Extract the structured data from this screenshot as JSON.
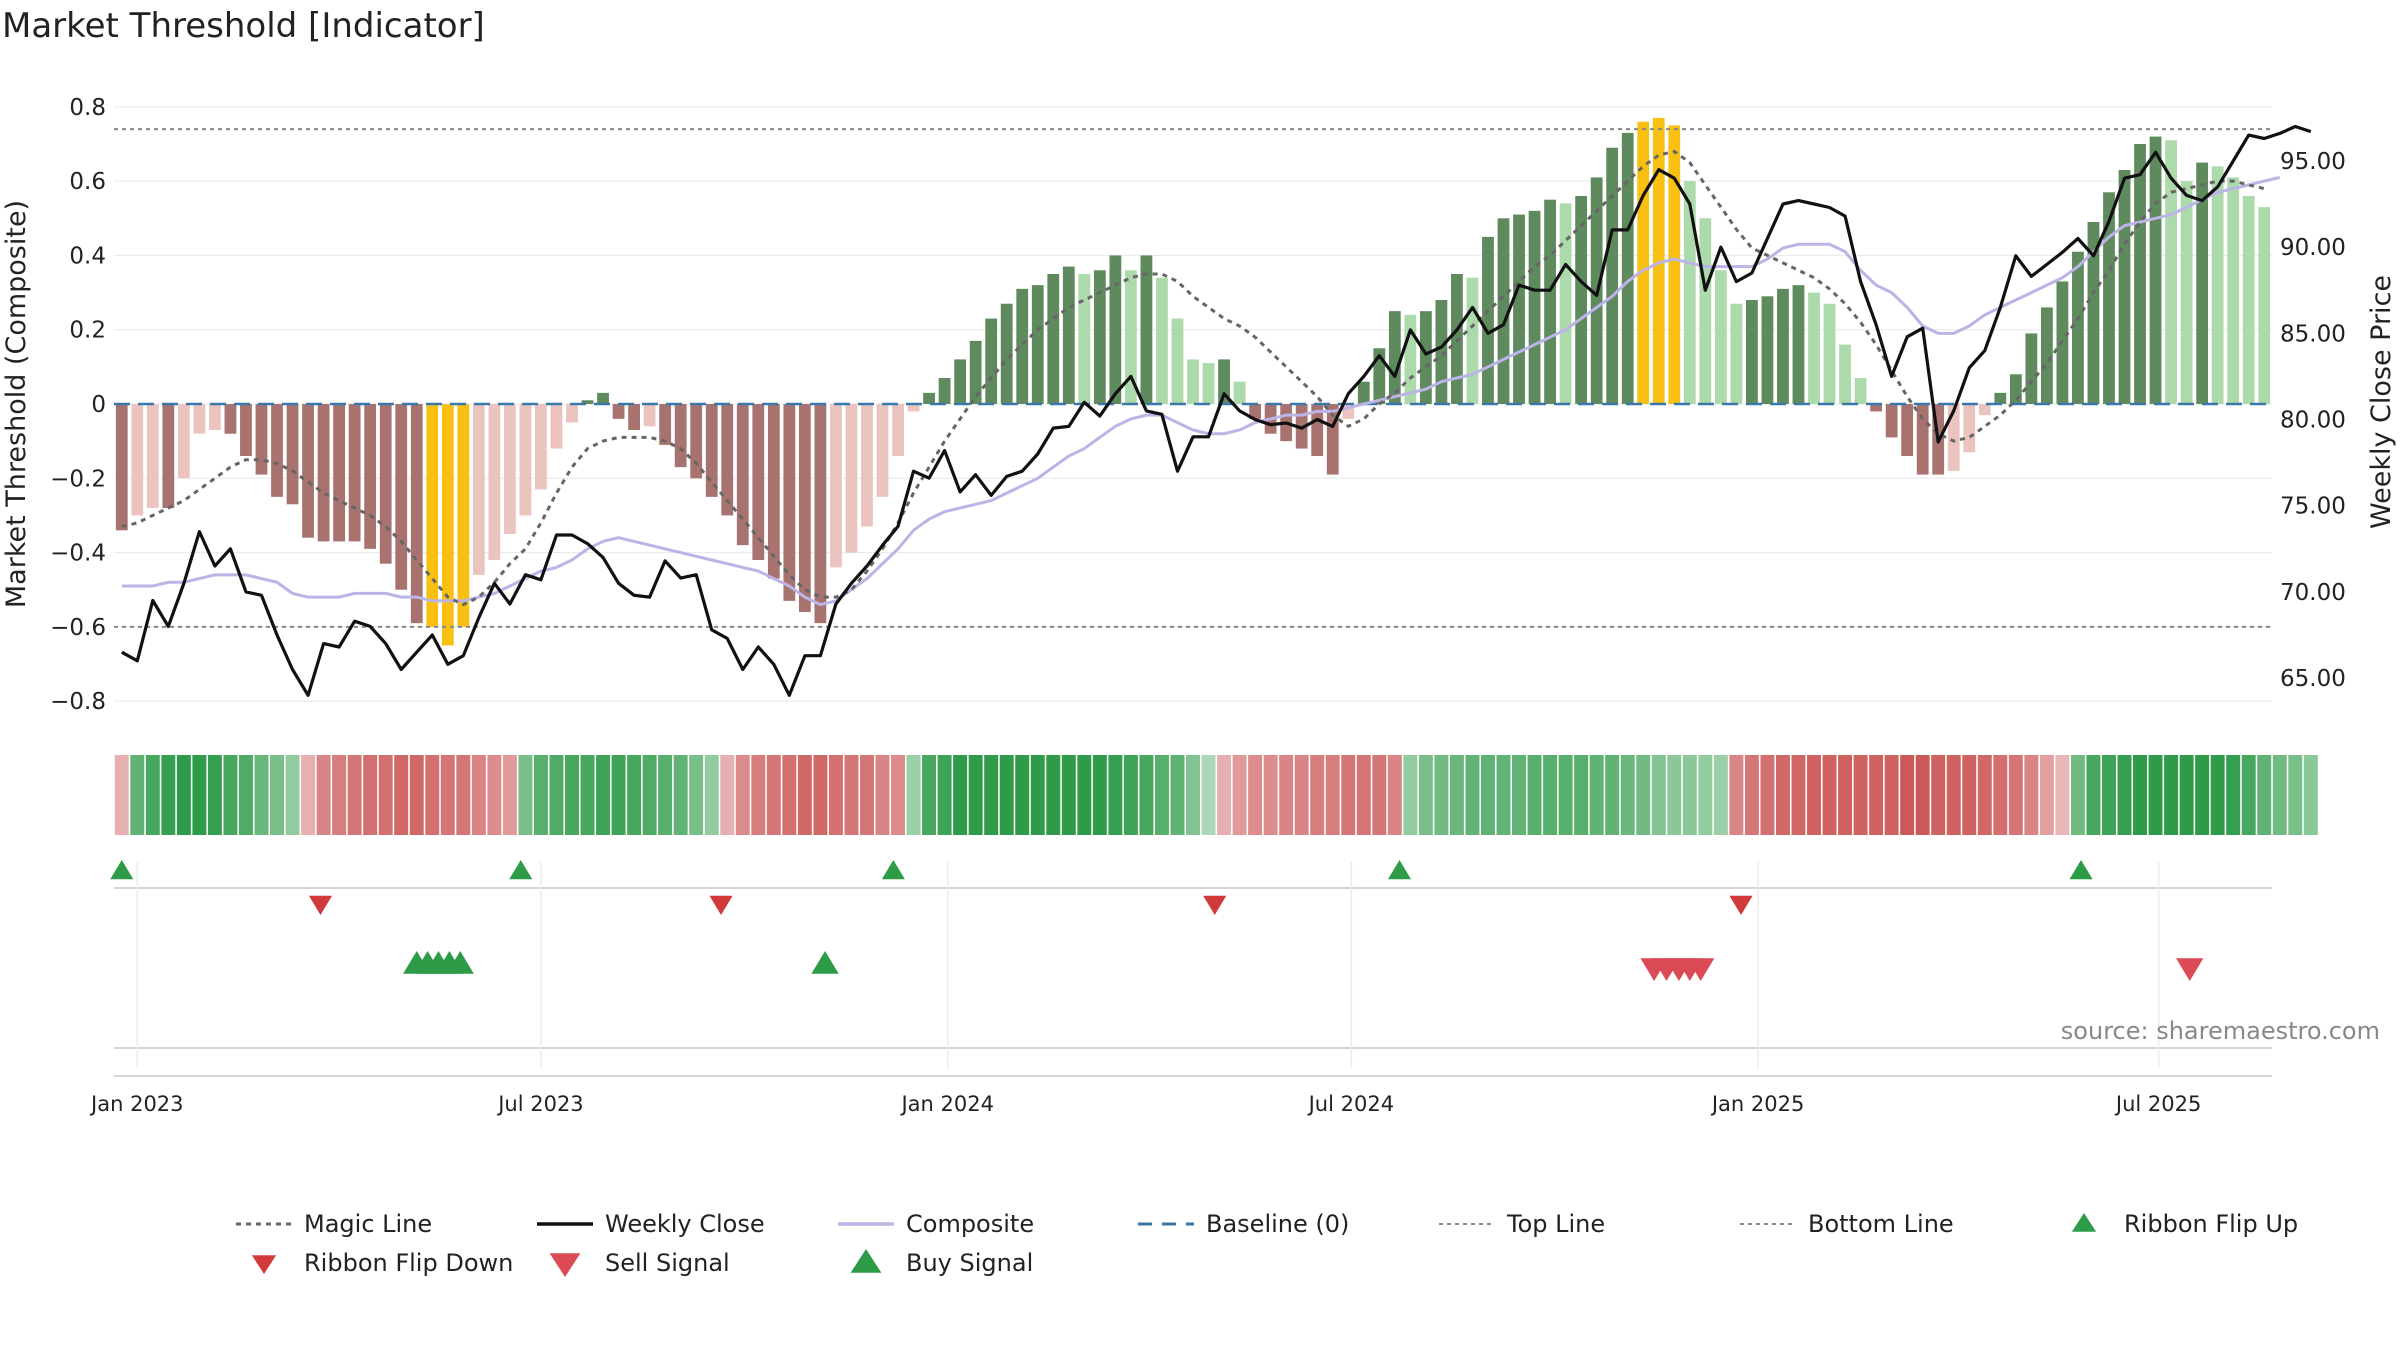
{
  "chart_data": {
    "type": "bar",
    "title": "Market Threshold [Indicator]",
    "ylabel": "Market Threshold (Composite)",
    "y2label": "Weekly Close Price",
    "source": "source: sharemaestro.com",
    "ylim": [
      -0.84,
      0.84
    ],
    "y2lim": [
      62.8,
      99.0
    ],
    "yticks": [
      {
        "label": "0.8",
        "v": 0.8
      },
      {
        "label": "0.6",
        "v": 0.6
      },
      {
        "label": "0.4",
        "v": 0.4
      },
      {
        "label": "0.2",
        "v": 0.2
      },
      {
        "label": "0",
        "v": 0
      },
      {
        "label": "−0.2",
        "v": -0.2
      },
      {
        "label": "−0.4",
        "v": -0.4
      },
      {
        "label": "−0.6",
        "v": -0.6
      },
      {
        "label": "−0.8",
        "v": -0.8
      }
    ],
    "y2ticks": [
      {
        "label": "95.00",
        "v": 95
      },
      {
        "label": "90.00",
        "v": 90
      },
      {
        "label": "85.00",
        "v": 85
      },
      {
        "label": "80.00",
        "v": 80
      },
      {
        "label": "75.00",
        "v": 75
      },
      {
        "label": "70.00",
        "v": 70
      },
      {
        "label": "65.00",
        "v": 65
      }
    ],
    "x_start_date": "2022-12-26",
    "xticks": [
      {
        "label": "Jan 2023",
        "week": 1
      },
      {
        "label": "Jul 2023",
        "week": 27
      },
      {
        "label": "Jan 2024",
        "week": 53.2
      },
      {
        "label": "Jul 2024",
        "week": 79.2
      },
      {
        "label": "Jan 2025",
        "week": 105.4
      },
      {
        "label": "Jul 2025",
        "week": 131.2
      }
    ],
    "top_line": 0.74,
    "bottom_line": -0.6,
    "baseline": 0,
    "composite_bars": [
      -0.34,
      -0.3,
      -0.28,
      -0.28,
      -0.2,
      -0.08,
      -0.07,
      -0.08,
      -0.14,
      -0.19,
      -0.25,
      -0.27,
      -0.36,
      -0.37,
      -0.37,
      -0.37,
      -0.39,
      -0.43,
      -0.5,
      -0.59,
      -0.6,
      -0.65,
      -0.6,
      -0.46,
      -0.42,
      -0.35,
      -0.3,
      -0.23,
      -0.12,
      -0.05,
      0.01,
      0.03,
      -0.04,
      -0.07,
      -0.06,
      -0.11,
      -0.17,
      -0.2,
      -0.25,
      -0.3,
      -0.38,
      -0.42,
      -0.47,
      -0.53,
      -0.56,
      -0.59,
      -0.44,
      -0.4,
      -0.33,
      -0.25,
      -0.14,
      -0.02,
      0.03,
      0.07,
      0.12,
      0.17,
      0.23,
      0.27,
      0.31,
      0.32,
      0.35,
      0.37,
      0.35,
      0.36,
      0.4,
      0.36,
      0.4,
      0.34,
      0.23,
      0.12,
      0.11,
      0.12,
      0.06,
      -0.04,
      -0.08,
      -0.1,
      -0.12,
      -0.14,
      -0.19,
      -0.04,
      0.06,
      0.15,
      0.25,
      0.24,
      0.25,
      0.28,
      0.35,
      0.34,
      0.45,
      0.5,
      0.51,
      0.52,
      0.55,
      0.54,
      0.56,
      0.61,
      0.69,
      0.73,
      0.76,
      0.77,
      0.75,
      0.6,
      0.5,
      0.36,
      0.27,
      0.28,
      0.29,
      0.31,
      0.32,
      0.3,
      0.27,
      0.16,
      0.07,
      -0.02,
      -0.09,
      -0.14,
      -0.19,
      -0.19,
      -0.18,
      -0.13,
      -0.03,
      0.03,
      0.08,
      0.19,
      0.26,
      0.33,
      0.41,
      0.49,
      0.57,
      0.63,
      0.7,
      0.72,
      0.71,
      0.6,
      0.65,
      0.64,
      0.61,
      0.56,
      0.53
    ],
    "weekly_close": [
      66.5,
      66.0,
      69.5,
      68.0,
      70.5,
      73.5,
      71.5,
      72.5,
      70.0,
      69.8,
      67.5,
      65.5,
      64.0,
      67.0,
      66.8,
      68.3,
      68.0,
      67.0,
      65.5,
      66.5,
      67.5,
      65.8,
      66.3,
      68.5,
      70.5,
      69.3,
      71.0,
      70.7,
      73.3,
      73.3,
      72.8,
      72.0,
      70.5,
      69.8,
      69.7,
      71.8,
      70.8,
      71.0,
      67.8,
      67.3,
      65.5,
      66.8,
      65.8,
      64.0,
      66.3,
      66.3,
      69.3,
      70.5,
      71.5,
      72.7,
      73.8,
      77.0,
      76.6,
      78.2,
      75.8,
      76.8,
      75.6,
      76.7,
      77.0,
      78.0,
      79.5,
      79.6,
      81.0,
      80.2,
      81.5,
      82.5,
      80.5,
      80.3,
      77.0,
      79.0,
      79.0,
      81.5,
      80.5,
      80.0,
      79.7,
      79.8,
      79.5,
      80.0,
      79.6,
      81.5,
      82.5,
      83.7,
      82.5,
      85.2,
      83.8,
      84.2,
      85.2,
      86.5,
      85.0,
      85.5,
      87.8,
      87.5,
      87.5,
      89.0,
      88.0,
      87.2,
      91.0,
      91.0,
      93.0,
      94.5,
      94.0,
      92.5,
      87.5,
      90.0,
      88.0,
      88.5,
      90.5,
      92.5,
      92.7,
      92.5,
      92.3,
      91.8,
      88.0,
      85.5,
      82.5,
      84.8,
      85.3,
      78.7,
      80.5,
      83.0,
      84.0,
      86.5,
      89.5,
      88.3,
      89.0,
      89.7,
      90.5,
      89.5,
      91.5,
      94.0,
      94.2,
      95.5,
      94.0,
      93.0,
      92.7,
      93.5,
      95.0,
      96.5,
      96.3,
      96.6,
      97.0,
      96.7
    ],
    "magic_line": [
      -0.33,
      -0.32,
      -0.3,
      -0.28,
      -0.26,
      -0.23,
      -0.2,
      -0.17,
      -0.15,
      -0.15,
      -0.16,
      -0.18,
      -0.21,
      -0.24,
      -0.26,
      -0.28,
      -0.3,
      -0.33,
      -0.37,
      -0.42,
      -0.47,
      -0.52,
      -0.54,
      -0.52,
      -0.48,
      -0.43,
      -0.39,
      -0.32,
      -0.24,
      -0.17,
      -0.12,
      -0.1,
      -0.09,
      -0.09,
      -0.09,
      -0.1,
      -0.12,
      -0.16,
      -0.21,
      -0.26,
      -0.31,
      -0.36,
      -0.41,
      -0.46,
      -0.5,
      -0.52,
      -0.52,
      -0.5,
      -0.45,
      -0.39,
      -0.32,
      -0.24,
      -0.17,
      -0.1,
      -0.04,
      0.02,
      0.07,
      0.12,
      0.16,
      0.2,
      0.23,
      0.26,
      0.28,
      0.3,
      0.32,
      0.34,
      0.35,
      0.35,
      0.33,
      0.29,
      0.26,
      0.23,
      0.21,
      0.18,
      0.14,
      0.1,
      0.06,
      0.02,
      -0.03,
      -0.06,
      -0.04,
      0.0,
      0.03,
      0.07,
      0.1,
      0.13,
      0.17,
      0.21,
      0.25,
      0.29,
      0.33,
      0.37,
      0.4,
      0.44,
      0.48,
      0.52,
      0.56,
      0.6,
      0.64,
      0.67,
      0.68,
      0.65,
      0.59,
      0.53,
      0.47,
      0.42,
      0.4,
      0.38,
      0.36,
      0.34,
      0.31,
      0.27,
      0.22,
      0.16,
      0.09,
      0.02,
      -0.04,
      -0.08,
      -0.1,
      -0.09,
      -0.06,
      -0.03,
      0.01,
      0.06,
      0.11,
      0.17,
      0.23,
      0.3,
      0.36,
      0.43,
      0.49,
      0.54,
      0.57,
      0.58,
      0.59,
      0.6,
      0.6,
      0.59,
      0.58
    ],
    "composite_line": [
      -0.49,
      -0.49,
      -0.49,
      -0.48,
      -0.48,
      -0.47,
      -0.46,
      -0.46,
      -0.46,
      -0.47,
      -0.48,
      -0.51,
      -0.52,
      -0.52,
      -0.52,
      -0.51,
      -0.51,
      -0.51,
      -0.52,
      -0.52,
      -0.53,
      -0.53,
      -0.53,
      -0.52,
      -0.51,
      -0.49,
      -0.47,
      -0.45,
      -0.44,
      -0.42,
      -0.39,
      -0.37,
      -0.36,
      -0.37,
      -0.38,
      -0.39,
      -0.4,
      -0.41,
      -0.42,
      -0.43,
      -0.44,
      -0.45,
      -0.47,
      -0.49,
      -0.52,
      -0.54,
      -0.53,
      -0.5,
      -0.47,
      -0.43,
      -0.39,
      -0.34,
      -0.31,
      -0.29,
      -0.28,
      -0.27,
      -0.26,
      -0.24,
      -0.22,
      -0.2,
      -0.17,
      -0.14,
      -0.12,
      -0.09,
      -0.06,
      -0.04,
      -0.03,
      -0.03,
      -0.05,
      -0.07,
      -0.08,
      -0.08,
      -0.07,
      -0.05,
      -0.04,
      -0.03,
      -0.03,
      -0.02,
      -0.02,
      -0.01,
      0.0,
      0.01,
      0.02,
      0.03,
      0.04,
      0.06,
      0.07,
      0.08,
      0.1,
      0.12,
      0.14,
      0.16,
      0.18,
      0.2,
      0.23,
      0.26,
      0.29,
      0.33,
      0.36,
      0.38,
      0.39,
      0.38,
      0.37,
      0.37,
      0.37,
      0.37,
      0.39,
      0.42,
      0.43,
      0.43,
      0.43,
      0.41,
      0.36,
      0.32,
      0.3,
      0.26,
      0.21,
      0.19,
      0.19,
      0.21,
      0.24,
      0.26,
      0.28,
      0.3,
      0.32,
      0.34,
      0.37,
      0.41,
      0.45,
      0.48,
      0.49,
      0.5,
      0.51,
      0.53,
      0.55,
      0.57,
      0.58,
      0.59,
      0.6,
      0.61
    ],
    "ribbon": [
      -0.3,
      0.7,
      0.85,
      0.95,
      1.0,
      1.0,
      0.95,
      0.85,
      0.8,
      0.65,
      0.55,
      0.4,
      -0.3,
      -0.6,
      -0.65,
      -0.7,
      -0.75,
      -0.75,
      -0.8,
      -0.8,
      -0.75,
      -0.7,
      -0.7,
      -0.6,
      -0.55,
      -0.45,
      0.55,
      0.75,
      0.8,
      0.85,
      0.85,
      0.9,
      0.9,
      0.85,
      0.8,
      0.75,
      0.7,
      0.55,
      0.4,
      -0.3,
      -0.55,
      -0.65,
      -0.7,
      -0.75,
      -0.8,
      -0.8,
      -0.75,
      -0.7,
      -0.7,
      -0.6,
      -0.55,
      0.35,
      0.85,
      0.9,
      1.0,
      1.0,
      1.0,
      1.0,
      1.0,
      1.0,
      1.0,
      1.0,
      1.0,
      1.0,
      0.95,
      0.9,
      0.85,
      0.75,
      0.7,
      0.5,
      0.25,
      -0.3,
      -0.45,
      -0.55,
      -0.55,
      -0.6,
      -0.6,
      -0.65,
      -0.65,
      -0.7,
      -0.7,
      -0.7,
      -0.6,
      0.4,
      0.55,
      0.6,
      0.65,
      0.7,
      0.7,
      0.7,
      0.7,
      0.75,
      0.75,
      0.75,
      0.75,
      0.7,
      0.7,
      0.65,
      0.6,
      0.5,
      0.45,
      0.45,
      0.4,
      0.35,
      -0.6,
      -0.7,
      -0.75,
      -0.8,
      -0.8,
      -0.85,
      -0.85,
      -0.85,
      -0.85,
      -0.85,
      -0.85,
      -0.9,
      -0.9,
      -0.85,
      -0.85,
      -0.85,
      -0.8,
      -0.75,
      -0.7,
      -0.6,
      -0.4,
      -0.25,
      0.6,
      0.85,
      0.9,
      0.95,
      1.0,
      1.0,
      1.0,
      1.0,
      1.0,
      1.0,
      0.95,
      0.85,
      0.7,
      0.6,
      0.55,
      0.45
    ],
    "ribbon_flip_up_weeks": [
      0,
      25.7,
      49.7,
      82.3,
      126.2
    ],
    "ribbon_flip_down_weeks": [
      12.8,
      38.6,
      70.4,
      104.3
    ],
    "buy_signal_weeks": [
      19,
      19.7,
      20.4,
      21.1,
      21.8,
      45.3
    ],
    "sell_signal_weeks": [
      98.7,
      99.5,
      100.3,
      101.0,
      101.7,
      133.2
    ],
    "legend": [
      {
        "label": "Magic Line",
        "kind": "dotted",
        "color": "#666666"
      },
      {
        "label": "Weekly Close",
        "kind": "line",
        "color": "#111111"
      },
      {
        "label": "Composite",
        "kind": "line",
        "color": "#bcb3e6"
      },
      {
        "label": "Baseline (0)",
        "kind": "dashed",
        "color": "#3a78a8"
      },
      {
        "label": "Top Line",
        "kind": "fine",
        "color": "#888888"
      },
      {
        "label": "Bottom Line",
        "kind": "fine",
        "color": "#888888"
      },
      {
        "label": "Ribbon Flip Up",
        "kind": "up",
        "color": "#2e9b48"
      },
      {
        "label": "Ribbon Flip Down",
        "kind": "down",
        "color": "#d03a3a"
      },
      {
        "label": "Sell Signal",
        "kind": "down",
        "color": "#dc4a56"
      },
      {
        "label": "Buy Signal",
        "kind": "up",
        "color": "#2e9b48"
      }
    ],
    "colors": {
      "bar_pos_dark": "#5e8a5e",
      "bar_pos_light": "#addaab",
      "bar_neg_dark": "#a8726f",
      "bar_neg_light": "#ebc4c0",
      "bar_extreme": "#f8c010",
      "ribbon_green": "#2e9b48",
      "ribbon_red": "#c84b4b"
    },
    "legend_placement": "bottom",
    "grid": true
  }
}
